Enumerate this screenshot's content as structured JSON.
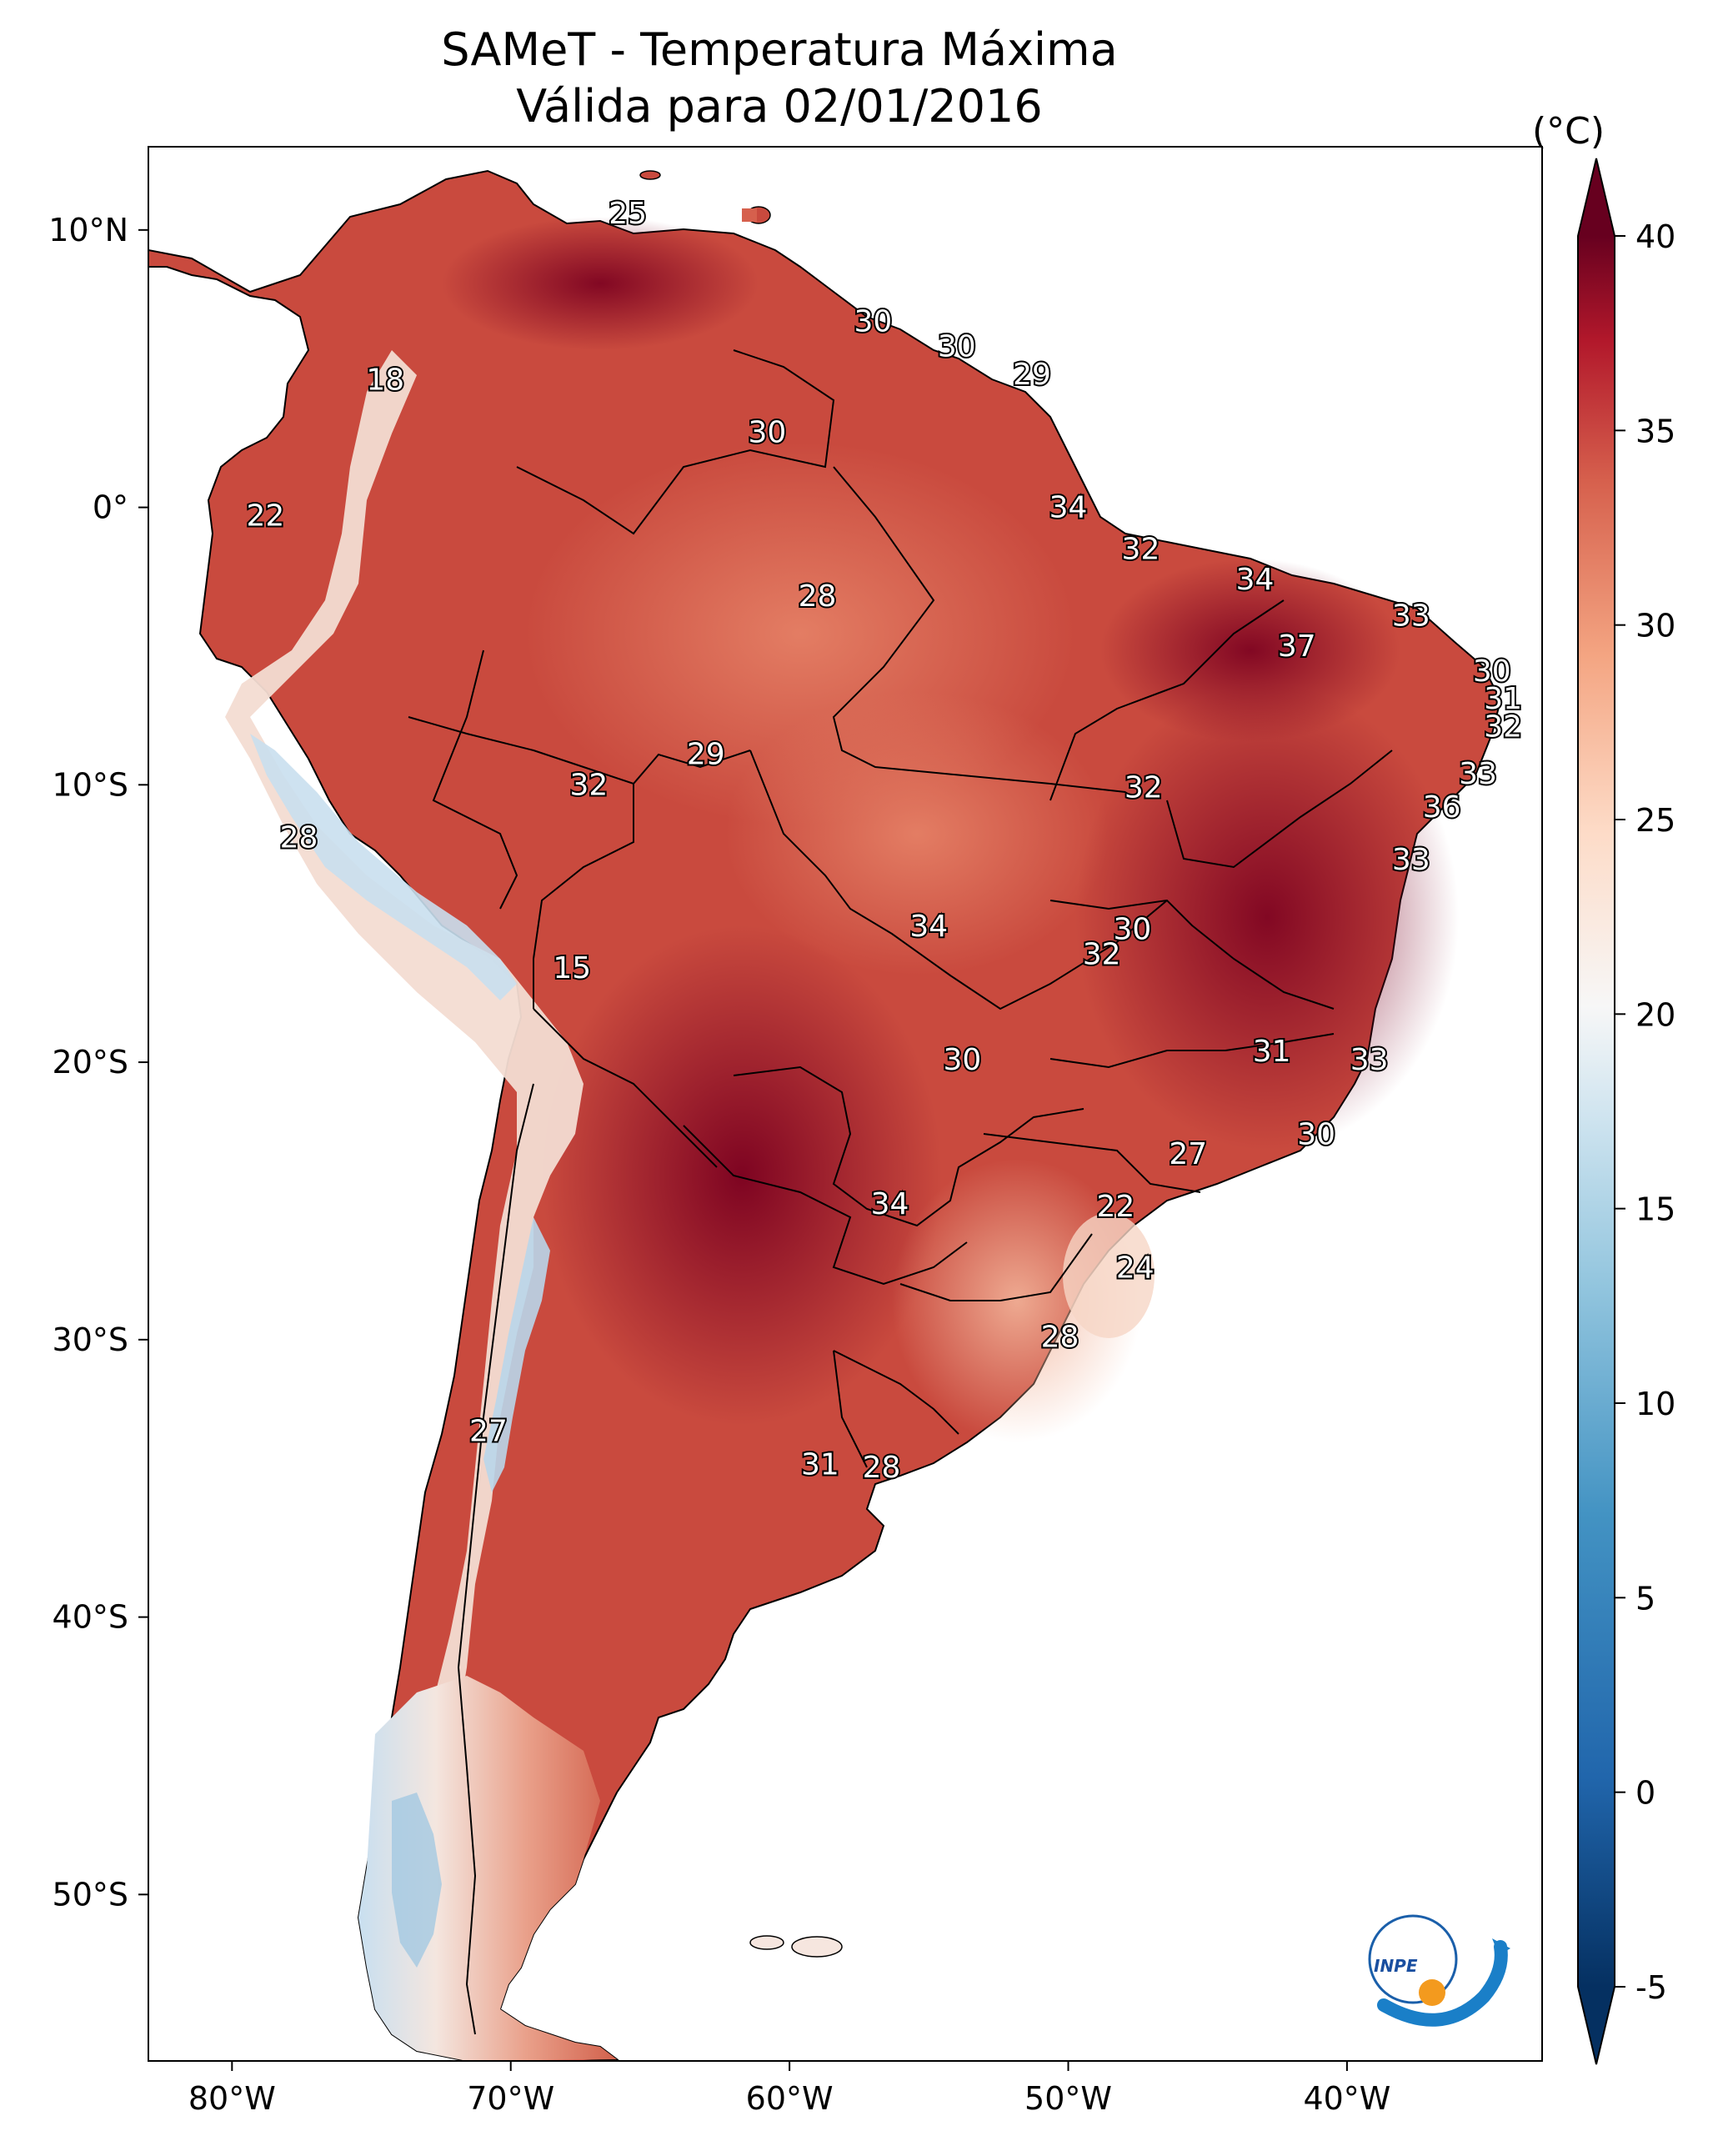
{
  "title": {
    "line1": "SAMeT - Temperatura Máxima",
    "line2": "Válida para 02/01/2016"
  },
  "map": {
    "lon_range": [
      -83,
      -33
    ],
    "lat_range": [
      -56,
      13
    ],
    "lon_ticks": [
      {
        "value": -80,
        "label": "80°W"
      },
      {
        "value": -70,
        "label": "70°W"
      },
      {
        "value": -60,
        "label": "60°W"
      },
      {
        "value": -50,
        "label": "50°W"
      },
      {
        "value": -40,
        "label": "40°W"
      }
    ],
    "lat_ticks": [
      {
        "value": 10,
        "label": "10°N"
      },
      {
        "value": 0,
        "label": "0°"
      },
      {
        "value": -10,
        "label": "10°S"
      },
      {
        "value": -20,
        "label": "20°S"
      },
      {
        "value": -30,
        "label": "30°S"
      },
      {
        "value": -40,
        "label": "40°S"
      },
      {
        "value": -50,
        "label": "50°S"
      }
    ],
    "station_labels": [
      {
        "text": "25",
        "lon": -65.8,
        "lat": 10.6
      },
      {
        "text": "30",
        "lon": -57.0,
        "lat": 6.7
      },
      {
        "text": "30",
        "lon": -54.0,
        "lat": 5.8
      },
      {
        "text": "29",
        "lon": -51.3,
        "lat": 4.8
      },
      {
        "text": "18",
        "lon": -74.5,
        "lat": 4.6
      },
      {
        "text": "30",
        "lon": -60.8,
        "lat": 2.7
      },
      {
        "text": "22",
        "lon": -78.8,
        "lat": -0.3
      },
      {
        "text": "34",
        "lon": -50.0,
        "lat": 0.0
      },
      {
        "text": "32",
        "lon": -47.4,
        "lat": -1.5
      },
      {
        "text": "34",
        "lon": -43.3,
        "lat": -2.6
      },
      {
        "text": "28",
        "lon": -59.0,
        "lat": -3.2
      },
      {
        "text": "33",
        "lon": -37.7,
        "lat": -3.9
      },
      {
        "text": "37",
        "lon": -41.8,
        "lat": -5.0
      },
      {
        "text": "30",
        "lon": -34.8,
        "lat": -5.9
      },
      {
        "text": "31",
        "lon": -34.4,
        "lat": -6.9
      },
      {
        "text": "32",
        "lon": -34.4,
        "lat": -7.9
      },
      {
        "text": "29",
        "lon": -63.0,
        "lat": -8.9
      },
      {
        "text": "32",
        "lon": -67.2,
        "lat": -10.0
      },
      {
        "text": "32",
        "lon": -47.3,
        "lat": -10.1
      },
      {
        "text": "33",
        "lon": -35.3,
        "lat": -9.6
      },
      {
        "text": "36",
        "lon": -36.6,
        "lat": -10.8
      },
      {
        "text": "28",
        "lon": -77.6,
        "lat": -11.9
      },
      {
        "text": "33",
        "lon": -37.7,
        "lat": -12.7
      },
      {
        "text": "34",
        "lon": -55.0,
        "lat": -15.1
      },
      {
        "text": "30",
        "lon": -47.7,
        "lat": -15.2
      },
      {
        "text": "32",
        "lon": -48.8,
        "lat": -16.1
      },
      {
        "text": "15",
        "lon": -67.8,
        "lat": -16.6
      },
      {
        "text": "31",
        "lon": -42.7,
        "lat": -19.6
      },
      {
        "text": "33",
        "lon": -39.2,
        "lat": -19.9
      },
      {
        "text": "30",
        "lon": -53.8,
        "lat": -19.9
      },
      {
        "text": "30",
        "lon": -41.1,
        "lat": -22.6
      },
      {
        "text": "27",
        "lon": -45.7,
        "lat": -23.3
      },
      {
        "text": "22",
        "lon": -48.3,
        "lat": -25.2
      },
      {
        "text": "34",
        "lon": -56.4,
        "lat": -25.1
      },
      {
        "text": "24",
        "lon": -47.6,
        "lat": -27.4
      },
      {
        "text": "28",
        "lon": -50.3,
        "lat": -29.9
      },
      {
        "text": "27",
        "lon": -70.8,
        "lat": -33.3
      },
      {
        "text": "31",
        "lon": -58.9,
        "lat": -34.5
      },
      {
        "text": "28",
        "lon": -56.7,
        "lat": -34.6
      }
    ],
    "logo_text": "INPE"
  },
  "colorbar": {
    "unit_label": "(°C)",
    "vmin": -5,
    "vmax": 40,
    "ticks": [
      {
        "value": 40,
        "label": "40"
      },
      {
        "value": 35,
        "label": "35"
      },
      {
        "value": 30,
        "label": "30"
      },
      {
        "value": 25,
        "label": "25"
      },
      {
        "value": 20,
        "label": "20"
      },
      {
        "value": 15,
        "label": "15"
      },
      {
        "value": 10,
        "label": "10"
      },
      {
        "value": 5,
        "label": "5"
      },
      {
        "value": 0,
        "label": "0"
      },
      {
        "value": -5,
        "label": "-5"
      }
    ],
    "colormap": "RdBu_r"
  }
}
